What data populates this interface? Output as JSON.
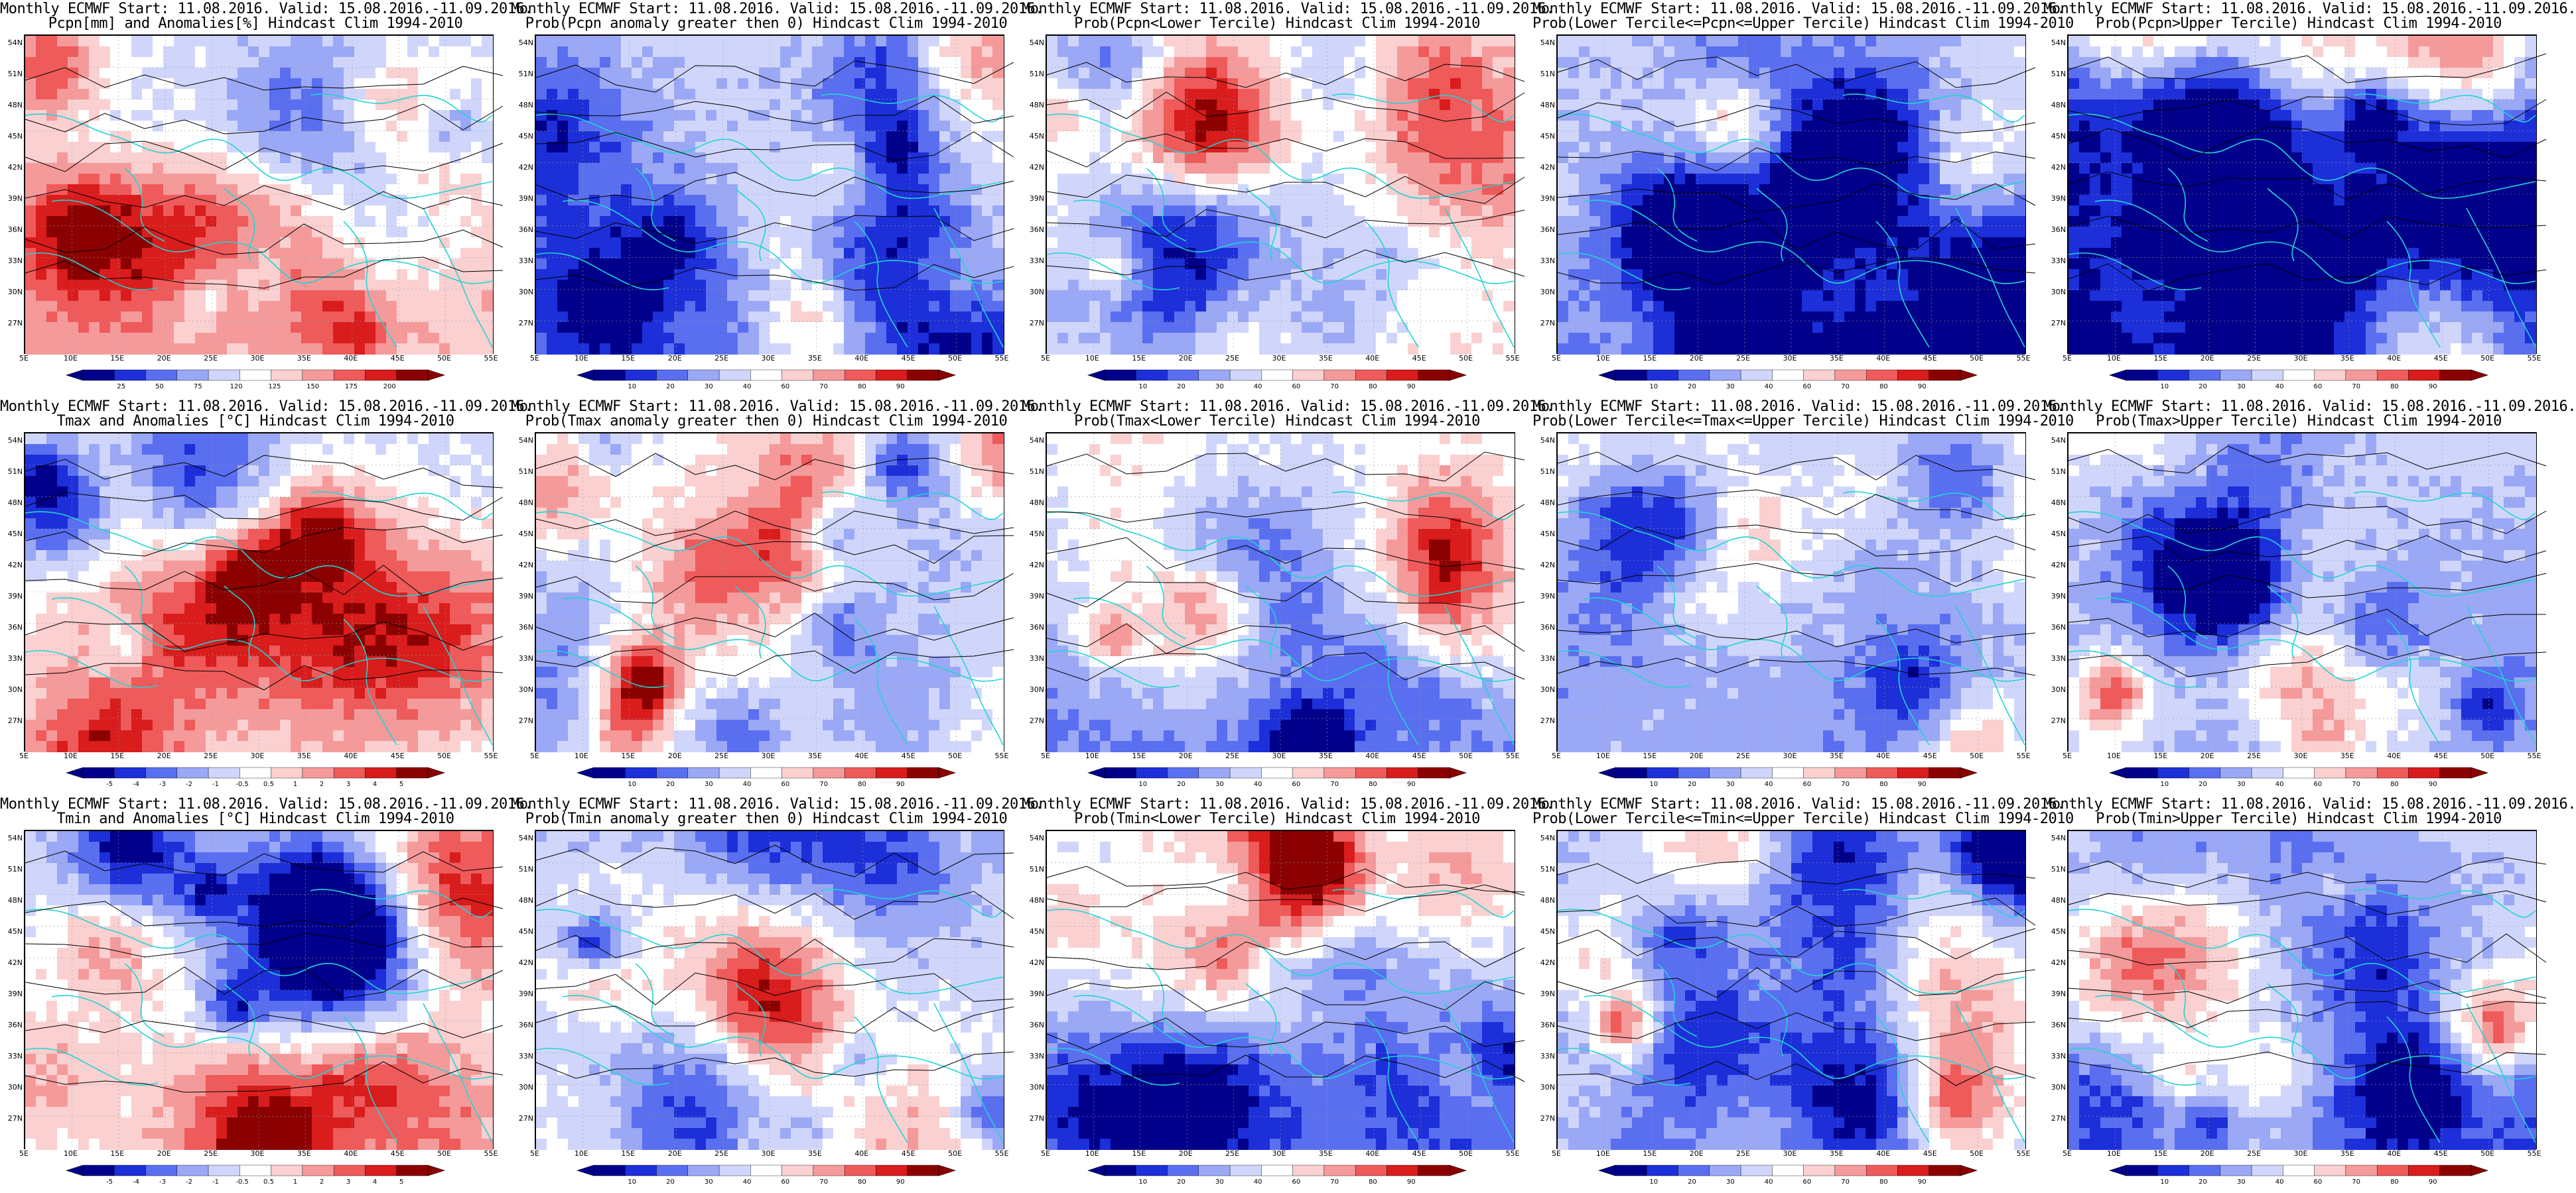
{
  "colors": {
    "coast": "#22d3d3",
    "contour": "#000000",
    "prob_scale": [
      "#00008b",
      "#1c2fd9",
      "#5a6ef0",
      "#9aa8f5",
      "#d0d6fb",
      "#ffffff",
      "#fbd0d0",
      "#f59a9a",
      "#ef5a5a",
      "#d91c1c",
      "#8b0000"
    ],
    "pcpn_scale": [
      "#00008b",
      "#1c2fd9",
      "#5a6ef0",
      "#9aa8f5",
      "#d0d6fb",
      "#ffffff",
      "#fbd0d0",
      "#f59a9a",
      "#ef5a5a",
      "#d91c1c",
      "#8b0000"
    ],
    "temp_scale": [
      "#00008b",
      "#1c2fd9",
      "#5a6ef0",
      "#9aa8f5",
      "#d0d6fb",
      "#ffffff",
      "#fbd0d0",
      "#f59a9a",
      "#ef5a5a",
      "#d91c1c",
      "#8b0000"
    ]
  },
  "axes": {
    "lat_labels": [
      "54N",
      "51N",
      "48N",
      "45N",
      "42N",
      "39N",
      "36N",
      "33N",
      "30N",
      "27N"
    ],
    "lon_labels": [
      "5E",
      "10E",
      "15E",
      "20E",
      "25E",
      "30E",
      "35E",
      "40E",
      "45E",
      "50E",
      "55E"
    ]
  },
  "colorbars": {
    "pcpn": [
      "25",
      "50",
      "75",
      "120",
      "125",
      "150",
      "175",
      "200"
    ],
    "prob": [
      "10",
      "20",
      "30",
      "40",
      "60",
      "70",
      "80",
      "90"
    ],
    "temp": [
      "-5",
      "-4",
      "-3",
      "-2",
      "-1",
      "-0.5",
      "0.5",
      "1",
      "2",
      "3",
      "4",
      "5"
    ]
  },
  "panels": [
    {
      "title1": "Monthly ECMWF Start: 11.08.2016. Valid: 15.08.2016.-11.09.2016.",
      "title2": "Pcpn[mm] and Anomalies[%] Hindcast Clim 1994-2010",
      "bar": "pcpn",
      "bias": 0.05,
      "seed": 11
    },
    {
      "title1": "Monthly ECMWF Start: 11.08.2016. Valid: 15.08.2016.-11.09.2016.",
      "title2": "Prob(Pcpn anomaly greater then 0) Hindcast Clim 1994-2010",
      "bar": "prob",
      "bias": -0.45,
      "seed": 12
    },
    {
      "title1": "Monthly ECMWF Start: 11.08.2016. Valid: 15.08.2016.-11.09.2016.",
      "title2": "Prob(Pcpn<Lower Tercile) Hindcast Clim 1994-2010",
      "bar": "prob",
      "bias": 0.05,
      "seed": 13
    },
    {
      "title1": "Monthly ECMWF Start: 11.08.2016. Valid: 15.08.2016.-11.09.2016.",
      "title2": "Prob(Lower Tercile<=Pcpn<=Upper Tercile) Hindcast Clim 1994-2010",
      "bar": "prob",
      "bias": -0.5,
      "seed": 14
    },
    {
      "title1": "Monthly ECMWF Start: 11.08.2016. Valid: 15.08.2016.-11.09.2016.",
      "title2": "Prob(Pcpn>Upper Tercile) Hindcast Clim 1994-2010",
      "bar": "prob",
      "bias": -0.5,
      "seed": 15
    },
    {
      "title1": "Monthly ECMWF Start: 11.08.2016. Valid: 15.08.2016.-11.09.2016.",
      "title2": "Tmax and Anomalies [°C] Hindcast Clim 1994-2010",
      "bar": "temp",
      "bias": -0.05,
      "seed": 21
    },
    {
      "title1": "Monthly ECMWF Start: 11.08.2016. Valid: 15.08.2016.-11.09.2016.",
      "title2": "Prob(Tmax anomaly greater then 0) Hindcast Clim 1994-2010",
      "bar": "prob",
      "bias": -0.1,
      "seed": 22
    },
    {
      "title1": "Monthly ECMWF Start: 11.08.2016. Valid: 15.08.2016.-11.09.2016.",
      "title2": "Prob(Tmax<Lower Tercile) Hindcast Clim 1994-2010",
      "bar": "prob",
      "bias": -0.35,
      "seed": 23
    },
    {
      "title1": "Monthly ECMWF Start: 11.08.2016. Valid: 15.08.2016.-11.09.2016.",
      "title2": "Prob(Lower Tercile<=Tmax<=Upper Tercile) Hindcast Clim 1994-2010",
      "bar": "prob",
      "bias": -0.25,
      "seed": 24
    },
    {
      "title1": "Monthly ECMWF Start: 11.08.2016. Valid: 15.08.2016.-11.09.2016.",
      "title2": "Prob(Tmax>Upper Tercile) Hindcast Clim 1994-2010",
      "bar": "prob",
      "bias": -0.45,
      "seed": 25
    },
    {
      "title1": "Monthly ECMWF Start: 11.08.2016. Valid: 15.08.2016.-11.09.2016.",
      "title2": "Tmin and Anomalies [°C] Hindcast Clim 1994-2010",
      "bar": "temp",
      "bias": -0.02,
      "seed": 31
    },
    {
      "title1": "Monthly ECMWF Start: 11.08.2016. Valid: 15.08.2016.-11.09.2016.",
      "title2": "Prob(Tmin anomaly greater then 0) Hindcast Clim 1994-2010",
      "bar": "prob",
      "bias": -0.15,
      "seed": 32
    },
    {
      "title1": "Monthly ECMWF Start: 11.08.2016. Valid: 15.08.2016.-11.09.2016.",
      "title2": "Prob(Tmin<Lower Tercile) Hindcast Clim 1994-2010",
      "bar": "prob",
      "bias": -0.3,
      "seed": 33
    },
    {
      "title1": "Monthly ECMWF Start: 11.08.2016. Valid: 15.08.2016.-11.09.2016.",
      "title2": "Prob(Lower Tercile<=Tmin<=Upper Tercile) Hindcast Clim 1994-2010",
      "bar": "prob",
      "bias": -0.2,
      "seed": 34
    },
    {
      "title1": "Monthly ECMWF Start: 11.08.2016. Valid: 15.08.2016.-11.09.2016.",
      "title2": "Prob(Tmin>Upper Tercile) Hindcast Clim 1994-2010",
      "bar": "prob",
      "bias": -0.45,
      "seed": 35
    }
  ]
}
